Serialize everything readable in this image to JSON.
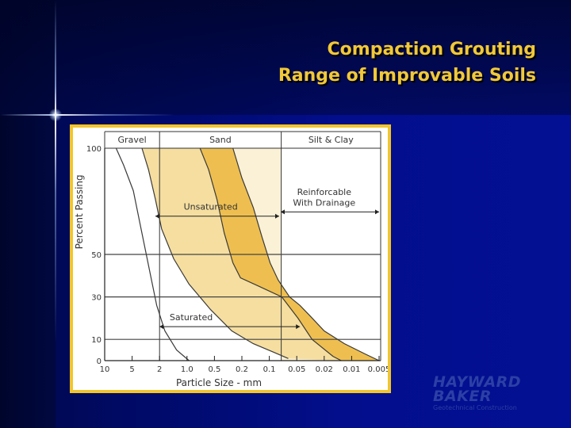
{
  "slide": {
    "title_line1": "Compaction Grouting",
    "title_line2": "Range of Improvable Soils",
    "title_color": "#f0c83a"
  },
  "logo": {
    "line1": "HAYWARD",
    "line2": "BAKER",
    "tagline": "Geotechnical Construction",
    "color": "#2c3fa5"
  },
  "chart_data": {
    "type": "area",
    "x_axis_label": "Particle Size - mm",
    "y_axis_label": "Percent Passing",
    "x_scale": "log, reversed",
    "x_ticks": [
      "10",
      "5",
      "2",
      "1.0",
      "0.5",
      "0.2",
      "0.1",
      "0.05",
      "0.02",
      "0.01",
      "0.005"
    ],
    "x_tick_values": [
      10,
      5,
      2,
      1.0,
      0.5,
      0.2,
      0.1,
      0.05,
      0.02,
      0.01,
      0.005
    ],
    "y_ticks": [
      "0",
      "10",
      "30",
      "50",
      "100"
    ],
    "y_tick_values": [
      0,
      10,
      30,
      50,
      100
    ],
    "ylim": [
      0,
      100
    ],
    "gridlines_y": [
      10,
      30,
      50
    ],
    "zones": [
      {
        "label": "Gravel",
        "from": 10,
        "to": 2
      },
      {
        "label": "Sand",
        "from": 2,
        "to": 0.074
      },
      {
        "label": "Silt & Clay",
        "from": 0.074,
        "to": 0.004
      }
    ],
    "regions": [
      {
        "label": "Unsaturated",
        "color": "#f5dea0",
        "upper_boundary": [
          [
            3.6,
            100
          ],
          [
            2.9,
            90
          ],
          [
            2.3,
            76
          ],
          [
            1.9,
            62
          ],
          [
            1.4,
            48
          ],
          [
            0.95,
            36
          ],
          [
            0.55,
            24
          ],
          [
            0.28,
            14
          ],
          [
            0.15,
            8
          ],
          [
            0.09,
            4
          ],
          [
            0.062,
            1
          ]
        ],
        "lower_boundary": [
          [
            0.72,
            100
          ],
          [
            0.58,
            90
          ],
          [
            0.46,
            76
          ],
          [
            0.36,
            60
          ],
          [
            0.27,
            46
          ],
          [
            0.21,
            39
          ],
          [
            0.13,
            35
          ],
          [
            0.073,
            30
          ],
          [
            0.048,
            20
          ],
          [
            0.03,
            10
          ],
          [
            0.016,
            2
          ],
          [
            0.013,
            0
          ]
        ]
      },
      {
        "label": "Saturated",
        "color": "#eebf50",
        "upper_boundary": [
          [
            0.72,
            100
          ],
          [
            0.58,
            90
          ],
          [
            0.46,
            76
          ],
          [
            0.36,
            60
          ],
          [
            0.27,
            46
          ],
          [
            0.21,
            39
          ],
          [
            0.13,
            35
          ],
          [
            0.073,
            30
          ],
          [
            0.048,
            20
          ],
          [
            0.03,
            10
          ],
          [
            0.016,
            2
          ],
          [
            0.013,
            0
          ]
        ],
        "lower_boundary": [
          [
            0.27,
            100
          ],
          [
            0.2,
            86
          ],
          [
            0.15,
            72
          ],
          [
            0.12,
            58
          ],
          [
            0.098,
            46
          ],
          [
            0.08,
            38
          ],
          [
            0.06,
            30
          ],
          [
            0.045,
            26
          ],
          [
            0.032,
            21
          ],
          [
            0.02,
            14
          ],
          [
            0.012,
            8
          ],
          [
            0.007,
            3
          ],
          [
            0.005,
            0
          ]
        ]
      },
      {
        "label": "Reinforcable With Drainage",
        "color": "#fbf1d6",
        "upper_boundary": [
          [
            0.27,
            100
          ],
          [
            0.2,
            86
          ],
          [
            0.15,
            72
          ],
          [
            0.12,
            58
          ],
          [
            0.098,
            46
          ],
          [
            0.08,
            38
          ],
          [
            0.06,
            30
          ],
          [
            0.045,
            26
          ],
          [
            0.032,
            21
          ],
          [
            0.02,
            14
          ],
          [
            0.012,
            8
          ],
          [
            0.007,
            3
          ],
          [
            0.005,
            0
          ]
        ],
        "lower_boundary": [
          [
            0.075,
            100
          ],
          [
            0.075,
            0
          ]
        ]
      }
    ],
    "boundary_curves": [
      {
        "name": "gravel-fines",
        "points": [
          [
            7.5,
            100
          ],
          [
            6.2,
            92
          ],
          [
            4.8,
            80
          ],
          [
            3.6,
            60
          ],
          [
            2.7,
            40
          ],
          [
            2.2,
            26
          ],
          [
            1.75,
            14
          ],
          [
            1.3,
            5
          ],
          [
            0.95,
            0
          ]
        ]
      },
      {
        "name": "unsaturated-coarse",
        "points": [
          [
            3.6,
            100
          ],
          [
            2.9,
            90
          ],
          [
            2.3,
            76
          ],
          [
            1.9,
            62
          ],
          [
            1.4,
            48
          ],
          [
            0.95,
            36
          ],
          [
            0.55,
            24
          ],
          [
            0.28,
            14
          ],
          [
            0.15,
            8
          ],
          [
            0.09,
            4
          ],
          [
            0.062,
            1
          ]
        ]
      },
      {
        "name": "saturated-limit",
        "points": [
          [
            0.72,
            100
          ],
          [
            0.58,
            90
          ],
          [
            0.46,
            76
          ],
          [
            0.36,
            60
          ],
          [
            0.27,
            46
          ],
          [
            0.21,
            39
          ],
          [
            0.13,
            35
          ],
          [
            0.073,
            30
          ],
          [
            0.048,
            20
          ],
          [
            0.03,
            10
          ],
          [
            0.016,
            2
          ],
          [
            0.013,
            0
          ]
        ]
      },
      {
        "name": "fine-limit",
        "points": [
          [
            0.27,
            100
          ],
          [
            0.2,
            86
          ],
          [
            0.15,
            72
          ],
          [
            0.12,
            58
          ],
          [
            0.098,
            46
          ],
          [
            0.08,
            38
          ],
          [
            0.06,
            30
          ],
          [
            0.045,
            26
          ],
          [
            0.032,
            21
          ],
          [
            0.02,
            14
          ],
          [
            0.012,
            8
          ],
          [
            0.007,
            3
          ],
          [
            0.005,
            0
          ]
        ]
      }
    ],
    "annotations": [
      {
        "text": "Unsaturated",
        "x": 0.55,
        "y": 71
      },
      {
        "text": "Saturated",
        "x": 0.9,
        "y": 19
      },
      {
        "text": "Reinforcable",
        "x": 0.02,
        "y": 78
      },
      {
        "text": "With Drainage",
        "x": 0.02,
        "y": 73
      }
    ],
    "arrows": [
      {
        "name": "unsaturated-arrow",
        "from": [
          2.3,
          68
        ],
        "to": [
          0.078,
          68
        ]
      },
      {
        "name": "saturated-arrow",
        "from": [
          2.0,
          16
        ],
        "to": [
          0.045,
          16
        ]
      },
      {
        "name": "drainage-arrow",
        "from": [
          0.075,
          70
        ],
        "to": [
          0.005,
          70
        ]
      }
    ],
    "fill_colors": {
      "unsaturated": "#f5dea0",
      "saturated": "#eebf50",
      "drainage": "#fbf1d6"
    }
  }
}
